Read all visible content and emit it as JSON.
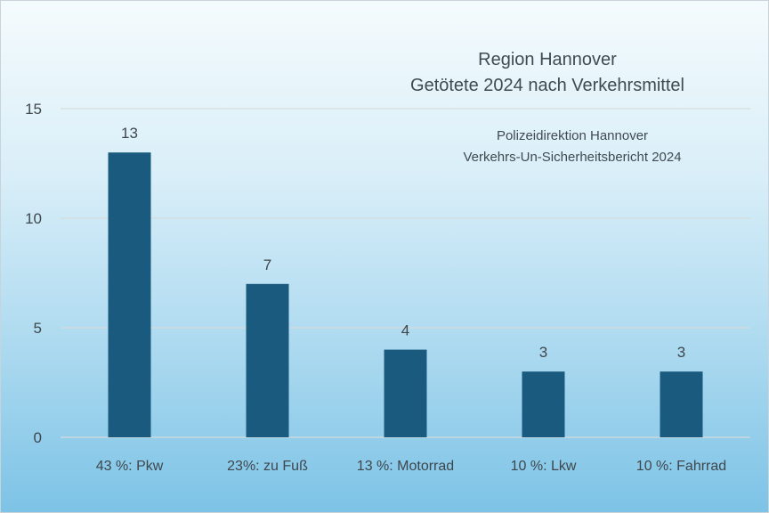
{
  "chart_data": {
    "type": "bar",
    "title": "Region Hannover",
    "subtitle": "Getötete 2024 nach Verkehrsmittel",
    "source_line1": "Polizeidirektion Hannover",
    "source_line2": "Verkehrs-Un-Sicherheitsbericht 2024",
    "categories": [
      "43 %: Pkw",
      "23%: zu Fuß",
      "13 %: Motorrad",
      "10 %: Lkw",
      "10 %: Fahrrad"
    ],
    "values": [
      13,
      7,
      4,
      3,
      3
    ],
    "yticks": [
      "0",
      "5",
      "10",
      "15"
    ],
    "ylim": [
      0,
      15
    ],
    "grid": true,
    "bar_color": "#1a5a7e",
    "grid_color": "#d6dadc",
    "xlabel": "",
    "ylabel": ""
  }
}
